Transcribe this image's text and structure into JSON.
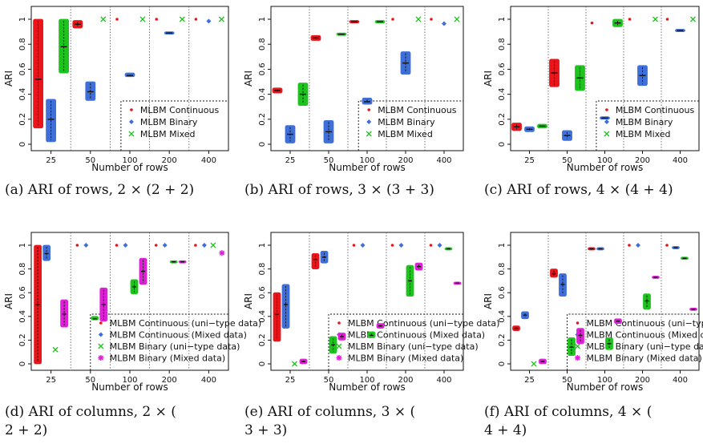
{
  "colors": {
    "continuous": "#e8161b",
    "binary": "#3f6fd8",
    "mixed": "#1ec31e",
    "binary_mixed": "#e01fd8",
    "axis": "#111111",
    "divider": "#555555"
  },
  "chart_data": [
    {
      "type": "box",
      "caption": "(a) ARI of rows, 2 × (2 + 2)",
      "xlabel": "Number of rows",
      "ylabel": "ARI",
      "ylim": [
        0,
        1
      ],
      "yticks": [
        "0",
        "0.2",
        "0.4",
        "0.6",
        "0.8",
        "1"
      ],
      "categories": [
        "25",
        "50",
        "100",
        "200",
        "400"
      ],
      "legend": {
        "entries": [
          {
            "name": "MLBM Continuous",
            "marker": "dot",
            "series": "continuous"
          },
          {
            "name": "MLBM Binary",
            "marker": "diamond",
            "series": "binary"
          },
          {
            "name": "MLBM Mixed",
            "marker": "cross",
            "series": "mixed"
          }
        ]
      },
      "series": [
        {
          "key": "continuous",
          "boxes": [
            [
              0.13,
              0.52,
              1.0
            ],
            [
              0.93,
              0.96,
              0.99
            ],
            [
              1,
              1,
              1
            ],
            [
              1,
              1,
              1
            ],
            [
              1,
              1,
              1
            ]
          ]
        },
        {
          "key": "binary",
          "boxes": [
            [
              0.02,
              0.2,
              0.36
            ],
            [
              0.35,
              0.42,
              0.5
            ],
            [
              0.54,
              0.55,
              0.57
            ],
            [
              0.88,
              0.89,
              0.9
            ],
            [
              0.98,
              0.985,
              0.99
            ]
          ]
        },
        {
          "key": "mixed",
          "boxes": [
            [
              0.57,
              0.78,
              1.0
            ],
            [
              1,
              1,
              1
            ],
            [
              1,
              1,
              1
            ],
            [
              1,
              1,
              1
            ],
            [
              1,
              1,
              1
            ]
          ]
        }
      ]
    },
    {
      "type": "box",
      "caption": "(b) ARI of rows, 3 × (3 + 3)",
      "xlabel": "Number of rows",
      "ylabel": "ARI",
      "ylim": [
        0,
        1
      ],
      "yticks": [
        "0",
        "0.2",
        "0.4",
        "0.6",
        "0.8",
        "1"
      ],
      "categories": [
        "25",
        "50",
        "100",
        "200",
        "400"
      ],
      "legend": {
        "entries": [
          {
            "name": "MLBM Continuous",
            "marker": "dot",
            "series": "continuous"
          },
          {
            "name": "MLBM Binary",
            "marker": "diamond",
            "series": "binary"
          },
          {
            "name": "MLBM Mixed",
            "marker": "cross",
            "series": "mixed"
          }
        ]
      },
      "series": [
        {
          "key": "continuous",
          "boxes": [
            [
              0.41,
              0.43,
              0.45
            ],
            [
              0.83,
              0.85,
              0.87
            ],
            [
              0.97,
              0.98,
              0.99
            ],
            [
              1,
              1,
              1
            ],
            [
              1,
              1,
              1
            ]
          ]
        },
        {
          "key": "binary",
          "boxes": [
            [
              0.01,
              0.08,
              0.15
            ],
            [
              0.01,
              0.1,
              0.19
            ],
            [
              0.32,
              0.34,
              0.37
            ],
            [
              0.56,
              0.65,
              0.74
            ],
            [
              0.96,
              0.965,
              0.97
            ]
          ]
        },
        {
          "key": "mixed",
          "boxes": [
            [
              0.31,
              0.4,
              0.49
            ],
            [
              0.87,
              0.88,
              0.89
            ],
            [
              0.97,
              0.98,
              0.99
            ],
            [
              1,
              1,
              1
            ],
            [
              1,
              1,
              1
            ]
          ]
        }
      ]
    },
    {
      "type": "box",
      "caption": "(c) ARI of rows, 4 × (4 + 4)",
      "xlabel": "Number of rows",
      "ylabel": "ARI",
      "ylim": [
        0,
        1
      ],
      "yticks": [
        "0",
        "0.2",
        "0.4",
        "0.6",
        "0.8",
        "1"
      ],
      "categories": [
        "25",
        "50",
        "100",
        "200",
        "400"
      ],
      "legend": {
        "entries": [
          {
            "name": "MLBM Continuous",
            "marker": "dot",
            "series": "continuous"
          },
          {
            "name": "MLBM Binary",
            "marker": "diamond",
            "series": "binary"
          },
          {
            "name": "MLBM Mixed",
            "marker": "cross",
            "series": "mixed"
          }
        ]
      },
      "series": [
        {
          "key": "continuous",
          "boxes": [
            [
              0.11,
              0.14,
              0.17
            ],
            [
              0.46,
              0.57,
              0.68
            ],
            [
              0.97,
              0.97,
              0.97
            ],
            [
              1,
              1,
              1
            ],
            [
              1,
              1,
              1
            ]
          ]
        },
        {
          "key": "binary",
          "boxes": [
            [
              0.1,
              0.12,
              0.14
            ],
            [
              0.03,
              0.07,
              0.11
            ],
            [
              0.2,
              0.21,
              0.22
            ],
            [
              0.47,
              0.55,
              0.63
            ],
            [
              0.9,
              0.91,
              0.92
            ]
          ]
        },
        {
          "key": "mixed",
          "boxes": [
            [
              0.13,
              0.145,
              0.16
            ],
            [
              0.43,
              0.53,
              0.63
            ],
            [
              0.94,
              0.97,
              1.0
            ],
            [
              1,
              1,
              1
            ],
            [
              1,
              1,
              1
            ]
          ]
        }
      ]
    },
    {
      "type": "box",
      "caption": "(d) ARI of columns, 2 × (2 + 2)",
      "xlabel": "Number of rows",
      "ylabel": "ARI",
      "ylim": [
        0,
        1
      ],
      "yticks": [
        "0",
        "0.2",
        "0.4",
        "0.6",
        "0.8",
        "1"
      ],
      "categories": [
        "25",
        "50",
        "100",
        "200",
        "400"
      ],
      "legend": {
        "entries": [
          {
            "name": "MLBM Continuous (uni−type data)",
            "marker": "dot",
            "series": "continuous"
          },
          {
            "name": "MLBM Continuous (Mixed data)",
            "marker": "diamond",
            "series": "binary"
          },
          {
            "name": "MLBM Binary (uni−type data)",
            "marker": "cross",
            "series": "mixed"
          },
          {
            "name": "MLBM Binary (Mixed data)",
            "marker": "star",
            "series": "binary_mixed"
          }
        ]
      },
      "series": [
        {
          "key": "continuous",
          "boxes": [
            [
              0.0,
              0.5,
              1.0
            ],
            [
              1,
              1,
              1
            ],
            [
              1,
              1,
              1
            ],
            [
              1,
              1,
              1
            ],
            [
              1,
              1,
              1
            ]
          ]
        },
        {
          "key": "binary",
          "boxes": [
            [
              0.87,
              0.93,
              1.0
            ],
            [
              1,
              1,
              1
            ],
            [
              1,
              1,
              1
            ],
            [
              1,
              1,
              1
            ],
            [
              1,
              1,
              1
            ]
          ]
        },
        {
          "key": "mixed",
          "boxes": [
            [
              0.12,
              0.12,
              0.12
            ],
            [
              0.37,
              0.38,
              0.4
            ],
            [
              0.59,
              0.65,
              0.71
            ],
            [
              0.85,
              0.86,
              0.87
            ],
            [
              1,
              1,
              1
            ]
          ]
        },
        {
          "key": "binary_mixed",
          "boxes": [
            [
              0.31,
              0.42,
              0.54
            ],
            [
              0.36,
              0.5,
              0.64
            ],
            [
              0.67,
              0.78,
              0.89
            ],
            [
              0.85,
              0.86,
              0.87
            ],
            [
              0.93,
              0.935,
              0.94
            ]
          ]
        }
      ]
    },
    {
      "type": "box",
      "caption": "(e) ARI of columns, 3 × (3 + 3)",
      "xlabel": "Number of rows",
      "ylabel": "ARI",
      "ylim": [
        0,
        1
      ],
      "yticks": [
        "0",
        "0.2",
        "0.4",
        "0.6",
        "0.8",
        "1"
      ],
      "categories": [
        "25",
        "50",
        "100",
        "200",
        "400"
      ],
      "legend": {
        "entries": [
          {
            "name": "MLBM Continuous (uni−type data)",
            "marker": "dot",
            "series": "continuous"
          },
          {
            "name": "MLBM Continuous (Mixed data)",
            "marker": "diamond",
            "series": "binary"
          },
          {
            "name": "MLBM Binary (uni−type data)",
            "marker": "cross",
            "series": "mixed"
          },
          {
            "name": "MLBM Binary (Mixed data)",
            "marker": "star",
            "series": "binary_mixed"
          }
        ]
      },
      "series": [
        {
          "key": "continuous",
          "boxes": [
            [
              0.19,
              0.42,
              0.6
            ],
            [
              0.8,
              0.88,
              0.93
            ],
            [
              1,
              1,
              1
            ],
            [
              1,
              1,
              1
            ],
            [
              1,
              1,
              1
            ]
          ]
        },
        {
          "key": "binary",
          "boxes": [
            [
              0.3,
              0.5,
              0.67
            ],
            [
              0.85,
              0.9,
              0.95
            ],
            [
              1,
              1,
              1
            ],
            [
              1,
              1,
              1
            ],
            [
              1,
              1,
              1
            ]
          ]
        },
        {
          "key": "mixed",
          "boxes": [
            [
              0.0,
              0.0,
              0.0
            ],
            [
              0.09,
              0.16,
              0.23
            ],
            [
              0.22,
              0.24,
              0.27
            ],
            [
              0.57,
              0.7,
              0.83
            ],
            [
              0.96,
              0.97,
              0.98
            ]
          ]
        },
        {
          "key": "binary_mixed",
          "boxes": [
            [
              0.0,
              0.02,
              0.04
            ],
            [
              0.2,
              0.23,
              0.26
            ],
            [
              0.3,
              0.32,
              0.34
            ],
            [
              0.79,
              0.82,
              0.85
            ],
            [
              0.67,
              0.68,
              0.69
            ]
          ]
        }
      ]
    },
    {
      "type": "box",
      "caption": "(f) ARI of columns, 4 × (4 + 4)",
      "xlabel": "Number of rows",
      "ylabel": "ARI",
      "ylim": [
        0,
        1
      ],
      "yticks": [
        "0",
        "0.2",
        "0.4",
        "0.6",
        "0.8",
        "1"
      ],
      "categories": [
        "25",
        "50",
        "100",
        "200",
        "400"
      ],
      "legend": {
        "entries": [
          {
            "name": "MLBM Continuous (uni−type data)",
            "marker": "dot",
            "series": "continuous"
          },
          {
            "name": "MLBM Continuous (Mixed data)",
            "marker": "diamond",
            "series": "binary"
          },
          {
            "name": "MLBM Binary (uni−type data)",
            "marker": "cross",
            "series": "mixed"
          },
          {
            "name": "MLBM Binary (Mixed data)",
            "marker": "star",
            "series": "binary_mixed"
          }
        ]
      },
      "series": [
        {
          "key": "continuous",
          "boxes": [
            [
              0.28,
              0.3,
              0.32
            ],
            [
              0.73,
              0.76,
              0.8
            ],
            [
              0.96,
              0.97,
              0.98
            ],
            [
              1,
              1,
              1
            ],
            [
              1,
              1,
              1
            ]
          ]
        },
        {
          "key": "binary",
          "boxes": [
            [
              0.38,
              0.41,
              0.44
            ],
            [
              0.57,
              0.67,
              0.76
            ],
            [
              0.96,
              0.97,
              0.98
            ],
            [
              0.99,
              1,
              1
            ],
            [
              0.97,
              0.98,
              0.99
            ]
          ]
        },
        {
          "key": "mixed",
          "boxes": [
            [
              0.0,
              0.0,
              0.0
            ],
            [
              0.07,
              0.14,
              0.22
            ],
            [
              0.12,
              0.17,
              0.22
            ],
            [
              0.46,
              0.53,
              0.59
            ],
            [
              0.88,
              0.89,
              0.9
            ]
          ]
        },
        {
          "key": "binary_mixed",
          "boxes": [
            [
              0.0,
              0.02,
              0.04
            ],
            [
              0.17,
              0.24,
              0.3
            ],
            [
              0.34,
              0.36,
              0.38
            ],
            [
              0.72,
              0.73,
              0.74
            ],
            [
              0.45,
              0.46,
              0.47
            ]
          ]
        }
      ]
    }
  ]
}
